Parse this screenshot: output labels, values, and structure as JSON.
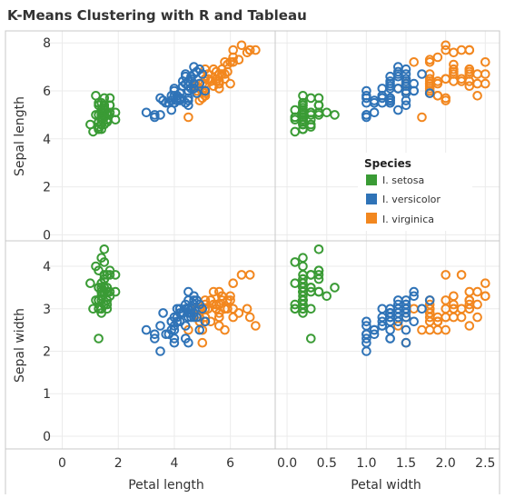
{
  "chart_data": {
    "type": "scatter",
    "title": "K-Means Clustering with R and Tableau",
    "xlabels": [
      "Petal length",
      "Petal width"
    ],
    "ylabels": [
      "Sepal length",
      "Sepal width"
    ],
    "xticks": {
      "petal_length": [
        "0",
        "2",
        "4",
        "6"
      ],
      "petal_width": [
        "0.0",
        "0.5",
        "1.0",
        "1.5",
        "2.0",
        "2.5"
      ]
    },
    "yticks": {
      "sepal_length": [
        "0",
        "2",
        "4",
        "6",
        "8"
      ],
      "sepal_width": [
        "0",
        "1",
        "2",
        "3",
        "4"
      ]
    },
    "xlim": {
      "petal_length": [
        -0.6,
        7.6
      ],
      "petal_width": [
        -0.15,
        2.68
      ]
    },
    "ylim": {
      "sepal_length": [
        -0.25,
        8.5
      ],
      "sepal_width": [
        -0.3,
        4.6
      ]
    },
    "grid": true,
    "legend": {
      "title": "Species",
      "position": "inside-right",
      "entries": [
        "I. setosa",
        "I. versicolor",
        "I. virginica"
      ]
    },
    "colors": {
      "I. setosa": "#3a9b35",
      "I. versicolor": "#2f73b7",
      "I. virginica": "#f2871f"
    },
    "series": [
      {
        "name": "I. setosa",
        "points": [
          [
            5.1,
            3.5,
            1.4,
            0.2
          ],
          [
            4.9,
            3.0,
            1.4,
            0.2
          ],
          [
            4.7,
            3.2,
            1.3,
            0.2
          ],
          [
            4.6,
            3.1,
            1.5,
            0.2
          ],
          [
            5.0,
            3.6,
            1.4,
            0.2
          ],
          [
            5.4,
            3.9,
            1.7,
            0.4
          ],
          [
            4.6,
            3.4,
            1.4,
            0.3
          ],
          [
            5.0,
            3.4,
            1.5,
            0.2
          ],
          [
            4.4,
            2.9,
            1.4,
            0.2
          ],
          [
            4.9,
            3.1,
            1.5,
            0.1
          ],
          [
            5.4,
            3.7,
            1.5,
            0.2
          ],
          [
            4.8,
            3.4,
            1.6,
            0.2
          ],
          [
            4.8,
            3.0,
            1.4,
            0.1
          ],
          [
            4.3,
            3.0,
            1.1,
            0.1
          ],
          [
            5.8,
            4.0,
            1.2,
            0.2
          ],
          [
            5.7,
            4.4,
            1.5,
            0.4
          ],
          [
            5.4,
            3.9,
            1.3,
            0.4
          ],
          [
            5.1,
            3.5,
            1.4,
            0.3
          ],
          [
            5.7,
            3.8,
            1.7,
            0.3
          ],
          [
            5.1,
            3.8,
            1.5,
            0.3
          ],
          [
            5.4,
            3.4,
            1.7,
            0.2
          ],
          [
            5.1,
            3.7,
            1.5,
            0.4
          ],
          [
            4.6,
            3.6,
            1.0,
            0.2
          ],
          [
            5.1,
            3.3,
            1.7,
            0.5
          ],
          [
            4.8,
            3.4,
            1.9,
            0.2
          ],
          [
            5.0,
            3.0,
            1.6,
            0.2
          ],
          [
            5.0,
            3.4,
            1.6,
            0.4
          ],
          [
            5.2,
            3.5,
            1.5,
            0.2
          ],
          [
            5.2,
            3.4,
            1.4,
            0.2
          ],
          [
            4.7,
            3.2,
            1.6,
            0.2
          ],
          [
            4.8,
            3.1,
            1.6,
            0.2
          ],
          [
            5.4,
            3.4,
            1.5,
            0.4
          ],
          [
            5.2,
            4.1,
            1.5,
            0.1
          ],
          [
            5.5,
            4.2,
            1.4,
            0.2
          ],
          [
            4.9,
            3.1,
            1.5,
            0.2
          ],
          [
            5.0,
            3.2,
            1.2,
            0.2
          ],
          [
            5.5,
            3.5,
            1.3,
            0.2
          ],
          [
            4.9,
            3.6,
            1.4,
            0.1
          ],
          [
            4.4,
            3.0,
            1.3,
            0.2
          ],
          [
            5.1,
            3.4,
            1.5,
            0.2
          ],
          [
            5.0,
            3.5,
            1.3,
            0.3
          ],
          [
            4.5,
            2.3,
            1.3,
            0.3
          ],
          [
            4.4,
            3.2,
            1.3,
            0.2
          ],
          [
            5.0,
            3.5,
            1.6,
            0.6
          ],
          [
            5.1,
            3.8,
            1.9,
            0.4
          ],
          [
            4.8,
            3.0,
            1.4,
            0.3
          ],
          [
            5.1,
            3.8,
            1.6,
            0.2
          ],
          [
            4.6,
            3.2,
            1.4,
            0.2
          ],
          [
            5.3,
            3.7,
            1.5,
            0.2
          ],
          [
            5.0,
            3.3,
            1.4,
            0.2
          ]
        ]
      },
      {
        "name": "I. versicolor",
        "points": [
          [
            7.0,
            3.2,
            4.7,
            1.4
          ],
          [
            6.4,
            3.2,
            4.5,
            1.5
          ],
          [
            6.9,
            3.1,
            4.9,
            1.5
          ],
          [
            5.5,
            2.3,
            4.0,
            1.3
          ],
          [
            6.5,
            2.8,
            4.6,
            1.5
          ],
          [
            5.7,
            2.8,
            4.5,
            1.3
          ],
          [
            6.3,
            3.3,
            4.7,
            1.6
          ],
          [
            4.9,
            2.4,
            3.3,
            1.0
          ],
          [
            6.6,
            2.9,
            4.6,
            1.3
          ],
          [
            5.2,
            2.7,
            3.9,
            1.4
          ],
          [
            5.0,
            2.0,
            3.5,
            1.0
          ],
          [
            5.9,
            3.0,
            4.2,
            1.5
          ],
          [
            6.0,
            2.2,
            4.0,
            1.0
          ],
          [
            6.1,
            2.9,
            4.7,
            1.4
          ],
          [
            5.6,
            2.9,
            3.6,
            1.3
          ],
          [
            6.7,
            3.1,
            4.4,
            1.4
          ],
          [
            5.6,
            3.0,
            4.5,
            1.5
          ],
          [
            5.8,
            2.7,
            4.1,
            1.0
          ],
          [
            6.2,
            2.2,
            4.5,
            1.5
          ],
          [
            5.6,
            2.5,
            3.9,
            1.1
          ],
          [
            5.9,
            3.2,
            4.8,
            1.8
          ],
          [
            6.1,
            2.8,
            4.0,
            1.3
          ],
          [
            6.3,
            2.5,
            4.9,
            1.5
          ],
          [
            6.1,
            2.8,
            4.7,
            1.2
          ],
          [
            6.4,
            2.9,
            4.3,
            1.3
          ],
          [
            6.6,
            3.0,
            4.4,
            1.4
          ],
          [
            6.8,
            2.8,
            4.8,
            1.4
          ],
          [
            6.7,
            3.0,
            5.0,
            1.7
          ],
          [
            6.0,
            2.9,
            4.5,
            1.5
          ],
          [
            5.7,
            2.6,
            3.5,
            1.0
          ],
          [
            5.5,
            2.4,
            3.8,
            1.1
          ],
          [
            5.5,
            2.4,
            3.7,
            1.0
          ],
          [
            5.8,
            2.7,
            3.9,
            1.2
          ],
          [
            6.0,
            2.7,
            5.1,
            1.6
          ],
          [
            5.4,
            3.0,
            4.5,
            1.5
          ],
          [
            6.0,
            3.4,
            4.5,
            1.6
          ],
          [
            6.7,
            3.1,
            4.7,
            1.5
          ],
          [
            6.3,
            2.3,
            4.4,
            1.3
          ],
          [
            5.6,
            3.0,
            4.1,
            1.3
          ],
          [
            5.5,
            2.5,
            4.0,
            1.3
          ],
          [
            5.5,
            2.6,
            4.4,
            1.2
          ],
          [
            6.1,
            3.0,
            4.6,
            1.4
          ],
          [
            5.8,
            2.6,
            4.0,
            1.2
          ],
          [
            5.0,
            2.3,
            3.3,
            1.0
          ],
          [
            5.6,
            2.7,
            4.2,
            1.3
          ],
          [
            5.7,
            3.0,
            4.2,
            1.2
          ],
          [
            5.7,
            2.9,
            4.2,
            1.3
          ],
          [
            6.2,
            2.9,
            4.3,
            1.3
          ],
          [
            5.1,
            2.5,
            3.0,
            1.1
          ],
          [
            5.7,
            2.8,
            4.1,
            1.3
          ]
        ]
      },
      {
        "name": "I. virginica",
        "points": [
          [
            6.3,
            3.3,
            6.0,
            2.5
          ],
          [
            5.8,
            2.7,
            5.1,
            1.9
          ],
          [
            7.1,
            3.0,
            5.9,
            2.1
          ],
          [
            6.3,
            2.9,
            5.6,
            1.8
          ],
          [
            6.5,
            3.0,
            5.8,
            2.2
          ],
          [
            7.6,
            3.0,
            6.6,
            2.1
          ],
          [
            4.9,
            2.5,
            4.5,
            1.7
          ],
          [
            7.3,
            2.9,
            6.3,
            1.8
          ],
          [
            6.7,
            2.5,
            5.8,
            1.8
          ],
          [
            7.2,
            3.6,
            6.1,
            2.5
          ],
          [
            6.5,
            3.2,
            5.1,
            2.0
          ],
          [
            6.4,
            2.7,
            5.3,
            1.9
          ],
          [
            6.8,
            3.0,
            5.5,
            2.1
          ],
          [
            5.7,
            2.5,
            5.0,
            2.0
          ],
          [
            5.8,
            2.8,
            5.1,
            2.4
          ],
          [
            6.4,
            3.2,
            5.3,
            2.3
          ],
          [
            6.5,
            3.0,
            5.5,
            1.8
          ],
          [
            7.7,
            3.8,
            6.7,
            2.2
          ],
          [
            7.7,
            2.6,
            6.9,
            2.3
          ],
          [
            6.0,
            2.2,
            5.0,
            1.5
          ],
          [
            6.9,
            3.2,
            5.7,
            2.3
          ],
          [
            5.6,
            2.8,
            4.9,
            2.0
          ],
          [
            7.7,
            2.8,
            6.7,
            2.0
          ],
          [
            6.3,
            2.7,
            4.9,
            1.8
          ],
          [
            6.7,
            3.3,
            5.7,
            2.1
          ],
          [
            7.2,
            3.2,
            6.0,
            1.8
          ],
          [
            6.2,
            2.8,
            4.8,
            1.8
          ],
          [
            6.1,
            3.0,
            4.9,
            1.8
          ],
          [
            6.4,
            2.8,
            5.6,
            2.1
          ],
          [
            7.2,
            3.0,
            5.8,
            1.6
          ],
          [
            7.4,
            2.8,
            6.1,
            1.9
          ],
          [
            7.9,
            3.8,
            6.4,
            2.0
          ],
          [
            6.4,
            2.8,
            5.6,
            2.2
          ],
          [
            6.3,
            2.8,
            5.1,
            1.5
          ],
          [
            6.1,
            2.6,
            5.6,
            1.4
          ],
          [
            7.7,
            3.0,
            6.1,
            2.3
          ],
          [
            6.3,
            3.4,
            5.6,
            2.4
          ],
          [
            6.4,
            3.1,
            5.5,
            1.8
          ],
          [
            6.0,
            3.0,
            4.8,
            1.8
          ],
          [
            6.9,
            3.1,
            5.4,
            2.1
          ],
          [
            6.7,
            3.1,
            5.6,
            2.4
          ],
          [
            6.9,
            3.1,
            5.1,
            2.3
          ],
          [
            5.8,
            2.7,
            5.1,
            1.9
          ],
          [
            6.8,
            3.2,
            5.9,
            2.3
          ],
          [
            6.7,
            3.3,
            5.7,
            2.5
          ],
          [
            6.7,
            3.0,
            5.2,
            2.3
          ],
          [
            6.3,
            2.5,
            5.0,
            1.9
          ],
          [
            6.5,
            3.0,
            5.2,
            2.0
          ],
          [
            6.2,
            3.4,
            5.4,
            2.3
          ],
          [
            5.9,
            3.0,
            5.1,
            1.8
          ]
        ]
      }
    ]
  }
}
